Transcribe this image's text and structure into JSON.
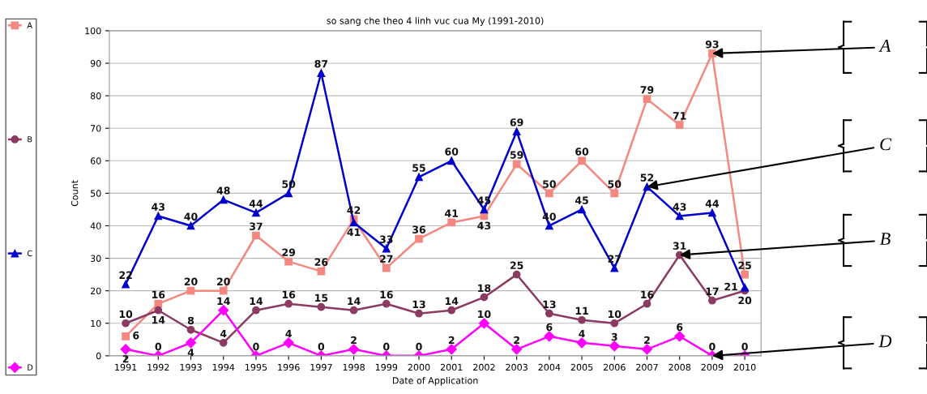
{
  "chart_data": {
    "type": "line",
    "title": "so sang che theo 4 linh vuc cua My (1991-2010)",
    "xlabel": "Date of Application",
    "ylabel": "Count",
    "categories": [
      "1991",
      "1992",
      "1993",
      "1994",
      "1995",
      "1996",
      "1997",
      "1998",
      "1999",
      "2000",
      "2001",
      "2002",
      "2003",
      "2004",
      "2005",
      "2006",
      "2007",
      "2008",
      "2009",
      "2010"
    ],
    "series": [
      {
        "name": "A",
        "color": "#f4877f",
        "marker": "square",
        "values": [
          6,
          16,
          20,
          20,
          37,
          29,
          26,
          42,
          27,
          36,
          41,
          43,
          59,
          50,
          60,
          50,
          79,
          71,
          93,
          25
        ]
      },
      {
        "name": "B",
        "color": "#8b3a62",
        "marker": "circle",
        "values": [
          10,
          14,
          8,
          4,
          14,
          16,
          15,
          14,
          16,
          13,
          14,
          18,
          25,
          13,
          11,
          10,
          16,
          31,
          17,
          20
        ]
      },
      {
        "name": "C",
        "color": "#0000cc",
        "marker": "triangle",
        "values": [
          22,
          43,
          40,
          48,
          44,
          50,
          87,
          41,
          33,
          55,
          60,
          45,
          69,
          40,
          45,
          27,
          52,
          43,
          44,
          21
        ]
      },
      {
        "name": "D",
        "color": "#ff00ff",
        "marker": "diamond",
        "values": [
          2,
          0,
          4,
          14,
          0,
          4,
          0,
          2,
          0,
          0,
          2,
          10,
          2,
          6,
          4,
          3,
          2,
          6,
          0,
          0
        ]
      }
    ],
    "ylim": [
      0,
      100
    ],
    "yticks": [
      0,
      10,
      20,
      30,
      40,
      50,
      60,
      70,
      80,
      90,
      100
    ],
    "grid": "y",
    "legend": "left",
    "data_labels": true,
    "annotations": [
      {
        "text": "A",
        "x": "2009",
        "y": 93
      },
      {
        "text": "C",
        "x": "2007",
        "y": 52
      },
      {
        "text": "B",
        "x": "2008",
        "y": 31
      },
      {
        "text": "D",
        "x": "2009",
        "y": 0
      }
    ]
  }
}
